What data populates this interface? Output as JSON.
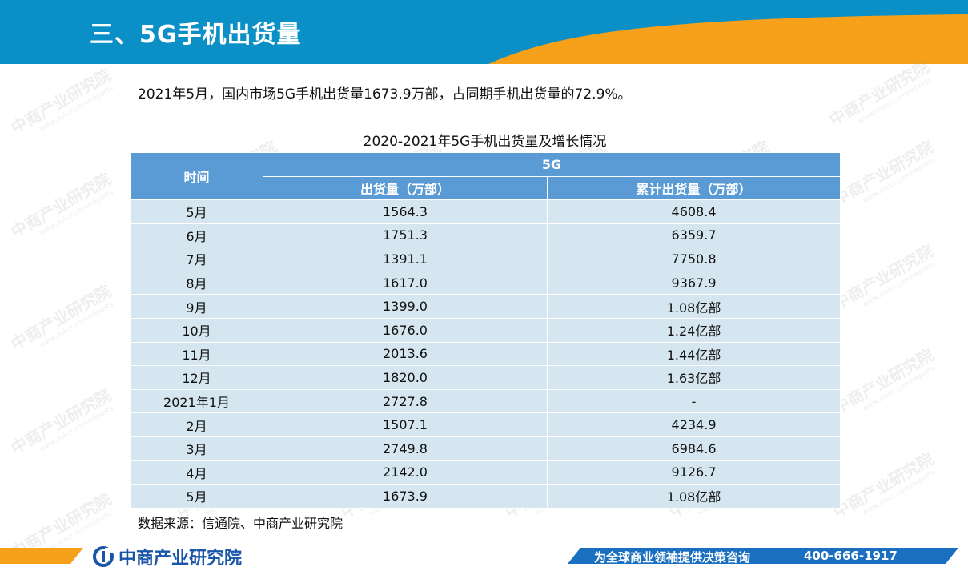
{
  "header": {
    "title": "三、5G手机出货量"
  },
  "summary": "2021年5月，国内市场5G手机出货量1673.9万部，占同期手机出货量的72.9%。",
  "table": {
    "title": "2020-2021年5G手机出货量及增长情况",
    "headers": {
      "time": "时间",
      "group": "5G",
      "shipments": "出货量（万部）",
      "cumulative": "累计出货量（万部）"
    },
    "rows": [
      {
        "time": "5月",
        "shipments": "1564.3",
        "cumulative": "4608.4"
      },
      {
        "time": "6月",
        "shipments": "1751.3",
        "cumulative": "6359.7"
      },
      {
        "time": "7月",
        "shipments": "1391.1",
        "cumulative": "7750.8"
      },
      {
        "time": "8月",
        "shipments": "1617.0",
        "cumulative": "9367.9"
      },
      {
        "time": "9月",
        "shipments": "1399.0",
        "cumulative": "1.08亿部"
      },
      {
        "time": "10月",
        "shipments": "1676.0",
        "cumulative": "1.24亿部"
      },
      {
        "time": "11月",
        "shipments": "2013.6",
        "cumulative": "1.44亿部"
      },
      {
        "time": "12月",
        "shipments": "1820.0",
        "cumulative": "1.63亿部"
      },
      {
        "time": "2021年1月",
        "shipments": "2727.8",
        "cumulative": "-"
      },
      {
        "time": "2月",
        "shipments": "1507.1",
        "cumulative": "4234.9"
      },
      {
        "time": "3月",
        "shipments": "2749.8",
        "cumulative": "6984.6"
      },
      {
        "time": "4月",
        "shipments": "2142.0",
        "cumulative": "9126.7"
      },
      {
        "time": "5月",
        "shipments": "1673.9",
        "cumulative": "1.08亿部"
      }
    ]
  },
  "source": "数据来源：信通院、中商产业研究院",
  "watermark": {
    "text": "中商产业研究院",
    "sub": "www.askci.com/reports"
  },
  "footer": {
    "logo_text": "中商产业研究院",
    "logo_icon": "askci-logo-icon",
    "slogan": "为全球商业领袖提供决策咨询",
    "phone": "400-666-1917"
  },
  "colors": {
    "header_blue": "#0a8fc7",
    "accent_orange": "#f7a11a",
    "table_header": "#5b9bd5",
    "table_row": "#d5e6f0",
    "footer_blue": "#1a6fc0"
  }
}
